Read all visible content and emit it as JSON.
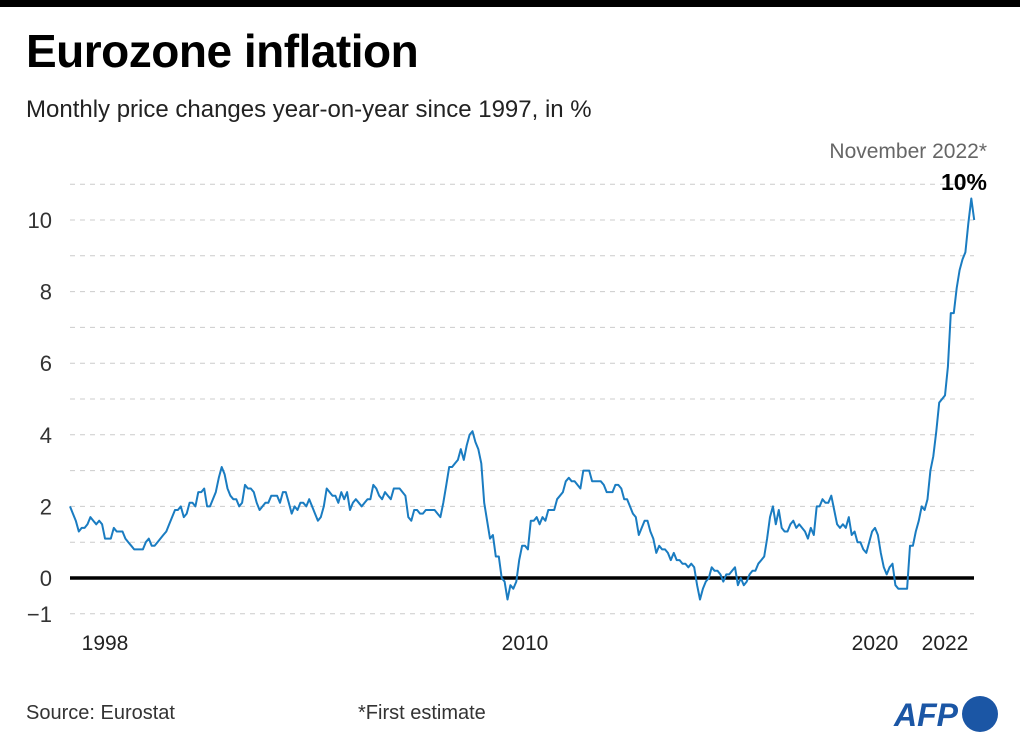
{
  "title": "Eurozone inflation",
  "subtitle": "Monthly price changes year-on-year since 1997, in %",
  "source": "Source: Eurostat",
  "footnote": "*First estimate",
  "logo": "AFP",
  "colors": {
    "line": "#1a7cc1",
    "zero_line": "#000000",
    "grid": "#cccccc",
    "logo": "#1b56a5"
  },
  "chart_data": {
    "type": "line",
    "title": "Eurozone inflation",
    "subtitle": "Monthly price changes year-on-year since 1997, in %",
    "x_start": "1997-01",
    "x_end": "2022-11",
    "x_frequency": "monthly",
    "x_ticks": [
      "1998",
      "2010",
      "2020",
      "2022"
    ],
    "y_ticks": [
      "−1",
      "0",
      "2",
      "4",
      "6",
      "8",
      "10"
    ],
    "ylim": [
      -1,
      11
    ],
    "grid": "horizontal dashed, every 1",
    "annotation": {
      "label": "November 2022*",
      "value": "10%"
    },
    "values": [
      2.0,
      1.8,
      1.6,
      1.3,
      1.4,
      1.4,
      1.5,
      1.7,
      1.6,
      1.5,
      1.6,
      1.5,
      1.1,
      1.1,
      1.1,
      1.4,
      1.3,
      1.3,
      1.3,
      1.1,
      1.0,
      0.9,
      0.8,
      0.8,
      0.8,
      0.8,
      1.0,
      1.1,
      0.9,
      0.9,
      1.0,
      1.1,
      1.2,
      1.3,
      1.5,
      1.7,
      1.9,
      1.9,
      2.0,
      1.7,
      1.8,
      2.1,
      2.1,
      2.0,
      2.4,
      2.4,
      2.5,
      2.0,
      2.0,
      2.2,
      2.4,
      2.8,
      3.1,
      2.9,
      2.5,
      2.3,
      2.2,
      2.2,
      2.0,
      2.1,
      2.6,
      2.5,
      2.5,
      2.4,
      2.1,
      1.9,
      2.0,
      2.1,
      2.1,
      2.3,
      2.3,
      2.3,
      2.1,
      2.4,
      2.4,
      2.1,
      1.8,
      2.0,
      1.9,
      2.1,
      2.1,
      2.0,
      2.2,
      2.0,
      1.8,
      1.6,
      1.7,
      2.0,
      2.5,
      2.4,
      2.3,
      2.3,
      2.1,
      2.4,
      2.2,
      2.4,
      1.9,
      2.1,
      2.2,
      2.1,
      2.0,
      2.1,
      2.2,
      2.2,
      2.6,
      2.5,
      2.3,
      2.2,
      2.4,
      2.3,
      2.2,
      2.5,
      2.5,
      2.5,
      2.4,
      2.3,
      1.7,
      1.6,
      1.9,
      1.9,
      1.8,
      1.8,
      1.9,
      1.9,
      1.9,
      1.9,
      1.8,
      1.7,
      2.1,
      2.6,
      3.1,
      3.1,
      3.2,
      3.3,
      3.6,
      3.3,
      3.7,
      4.0,
      4.1,
      3.8,
      3.6,
      3.2,
      2.1,
      1.6,
      1.1,
      1.2,
      0.6,
      0.6,
      0.0,
      -0.1,
      -0.6,
      -0.2,
      -0.3,
      -0.1,
      0.5,
      0.9,
      0.9,
      0.8,
      1.6,
      1.6,
      1.7,
      1.5,
      1.7,
      1.6,
      1.9,
      1.9,
      1.9,
      2.2,
      2.3,
      2.4,
      2.7,
      2.8,
      2.7,
      2.7,
      2.6,
      2.5,
      3.0,
      3.0,
      3.0,
      2.7,
      2.7,
      2.7,
      2.7,
      2.6,
      2.4,
      2.4,
      2.4,
      2.6,
      2.6,
      2.5,
      2.2,
      2.2,
      2.0,
      1.8,
      1.7,
      1.2,
      1.4,
      1.6,
      1.6,
      1.3,
      1.1,
      0.7,
      0.9,
      0.8,
      0.8,
      0.7,
      0.5,
      0.7,
      0.5,
      0.5,
      0.4,
      0.4,
      0.3,
      0.4,
      0.3,
      -0.2,
      -0.6,
      -0.3,
      -0.1,
      0.0,
      0.3,
      0.2,
      0.2,
      0.1,
      -0.1,
      0.1,
      0.1,
      0.2,
      0.3,
      -0.2,
      0.0,
      -0.2,
      -0.1,
      0.1,
      0.2,
      0.2,
      0.4,
      0.5,
      0.6,
      1.1,
      1.7,
      2.0,
      1.5,
      1.9,
      1.4,
      1.3,
      1.3,
      1.5,
      1.6,
      1.4,
      1.5,
      1.4,
      1.3,
      1.1,
      1.4,
      1.2,
      2.0,
      2.0,
      2.2,
      2.1,
      2.1,
      2.3,
      1.9,
      1.5,
      1.4,
      1.5,
      1.4,
      1.7,
      1.2,
      1.3,
      1.0,
      1.0,
      0.8,
      0.7,
      1.0,
      1.3,
      1.4,
      1.2,
      0.7,
      0.3,
      0.1,
      0.3,
      0.4,
      -0.2,
      -0.3,
      -0.3,
      -0.3,
      -0.3,
      0.9,
      0.9,
      1.3,
      1.6,
      2.0,
      1.9,
      2.2,
      3.0,
      3.4,
      4.1,
      4.9,
      5.0,
      5.1,
      5.9,
      7.4,
      7.4,
      8.1,
      8.6,
      8.9,
      9.1,
      9.9,
      10.6,
      10.0
    ]
  }
}
